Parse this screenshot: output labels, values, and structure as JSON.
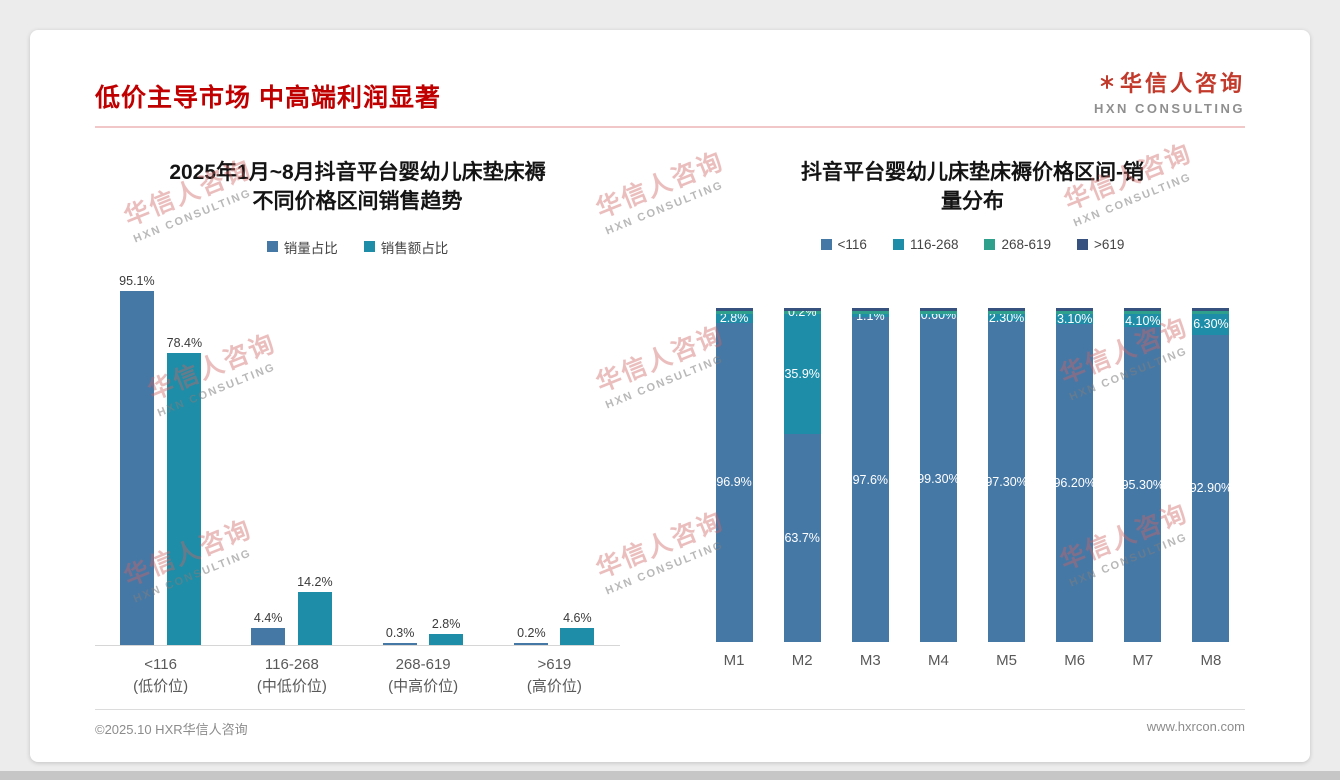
{
  "header": {
    "title": "低价主导市场 中高端利润显著"
  },
  "logo": {
    "name": "华信人咨询",
    "subtitle": "HXN CONSULTING"
  },
  "watermark": {
    "line1": "华信人咨询",
    "line2": "HXN CONSULTING"
  },
  "footer": {
    "left": "©2025.10 HXR华信人咨询",
    "right": "www.hxrcon.com"
  },
  "colors": {
    "title_red": "#c00000",
    "blue": "#4678a6",
    "teal": "#1d8da8",
    "green_teal": "#2ea08c",
    "navy": "#37527e"
  },
  "chart_data": [
    {
      "type": "bar",
      "title_lines": [
        "2025年1月~8月抖音平台婴幼儿床垫床褥",
        "不同价格区间销售趋势"
      ],
      "categories": [
        "<116",
        "116-268",
        "268-619",
        ">619"
      ],
      "category_sublabels": [
        "(低价位)",
        "(中低价位)",
        "(中高价位)",
        "(高价位)"
      ],
      "series": [
        {
          "name": "销量占比",
          "color": "#4678a6",
          "values": [
            95.1,
            4.4,
            0.3,
            0.2
          ],
          "labels": [
            "95.1%",
            "4.4%",
            "0.3%",
            "0.2%"
          ]
        },
        {
          "name": "销售额占比",
          "color": "#1d8da8",
          "values": [
            78.4,
            14.2,
            2.8,
            4.6
          ],
          "labels": [
            "78.4%",
            "14.2%",
            "2.8%",
            "4.6%"
          ]
        }
      ],
      "ylim": [
        0,
        100
      ],
      "grid": false,
      "legend_position": "top"
    },
    {
      "type": "stacked-bar",
      "title_lines": [
        "抖音平台婴幼儿床垫床褥价格区间-销",
        "量分布"
      ],
      "categories": [
        "M1",
        "M2",
        "M3",
        "M4",
        "M5",
        "M6",
        "M7",
        "M8"
      ],
      "series": [
        {
          "name": "<116",
          "color": "#4678a6",
          "values": [
            96.9,
            63.7,
            97.6,
            99.3,
            97.3,
            96.2,
            95.3,
            92.9
          ],
          "labels": [
            "96.9%",
            "63.7%",
            "97.6%",
            "99.30%",
            "97.30%",
            "96.20%",
            "95.30%",
            "92.90%"
          ]
        },
        {
          "name": "116-268",
          "color": "#1d8da8",
          "values": [
            2.8,
            35.9,
            1.1,
            0.6,
            2.3,
            3.1,
            4.1,
            6.3
          ],
          "labels": [
            "2.8%",
            "35.9%",
            "1.1%",
            "0.60%",
            "2.30%",
            "3.10%",
            "4.10%",
            "6.30%"
          ]
        },
        {
          "name": "268-619",
          "color": "#2ea08c",
          "values": [
            0.2,
            0.2,
            0.7,
            0.05,
            0.2,
            0.4,
            0.3,
            0.4
          ],
          "labels": [
            "",
            "0.2%",
            "",
            "",
            "",
            "",
            "",
            ""
          ]
        },
        {
          "name": ">619",
          "color": "#37527e",
          "values": [
            0.1,
            0.2,
            0.6,
            0.05,
            0.2,
            0.3,
            0.3,
            0.4
          ],
          "labels": [
            "",
            "",
            "",
            "",
            "",
            "",
            "",
            ""
          ]
        }
      ],
      "ylim": [
        0,
        100
      ],
      "grid": false,
      "legend_position": "top"
    }
  ]
}
